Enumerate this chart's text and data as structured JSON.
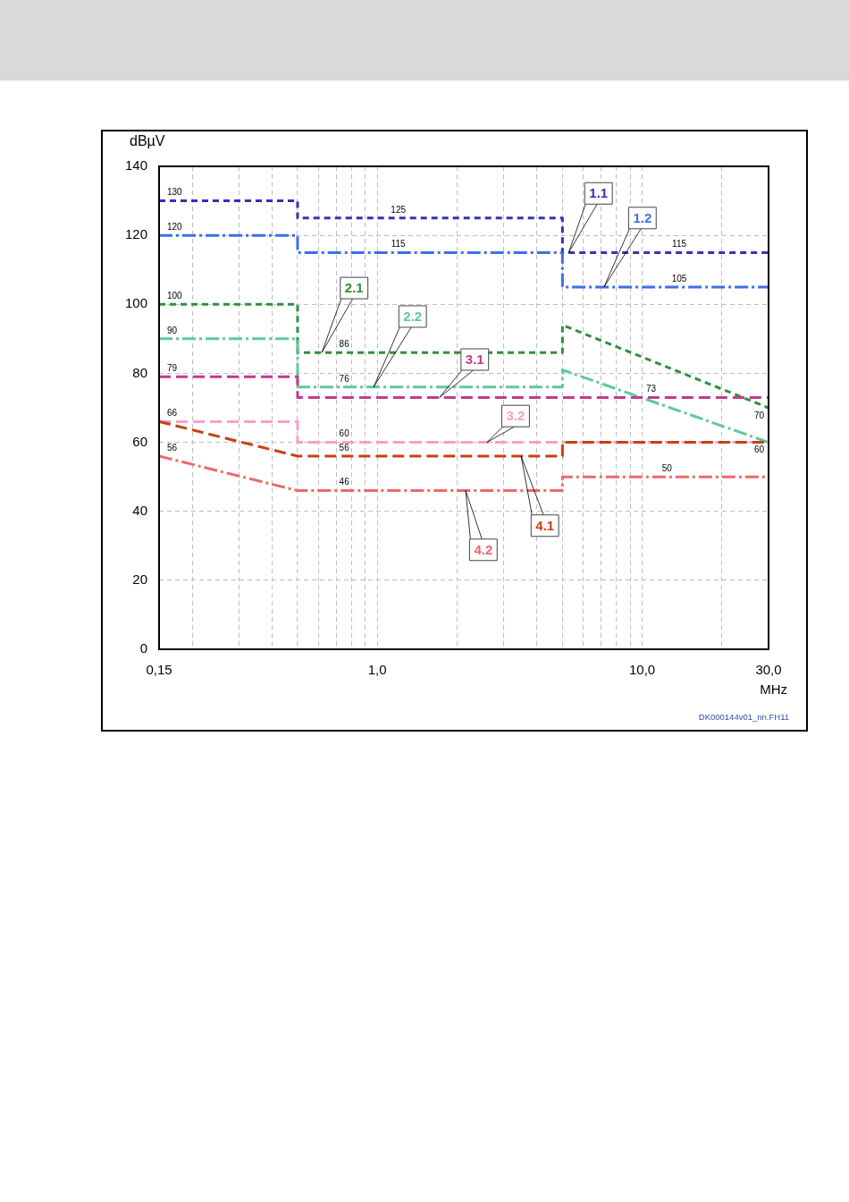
{
  "chart_data": {
    "type": "line",
    "xlabel": "MHz",
    "ylabel": "dBµV",
    "log": "x",
    "grid": true,
    "xlim": [
      0.15,
      30
    ],
    "xticks": [
      {
        "value": 0.15,
        "label": "0,15"
      },
      {
        "value": 0.2,
        "label": null
      },
      {
        "value": 0.3,
        "label": null
      },
      {
        "value": 0.4,
        "label": null
      },
      {
        "value": 0.5,
        "label": null
      },
      {
        "value": 0.6,
        "label": null
      },
      {
        "value": 0.7,
        "label": null
      },
      {
        "value": 0.8,
        "label": null
      },
      {
        "value": 0.9,
        "label": null
      },
      {
        "value": 1,
        "label": "1,0"
      },
      {
        "value": 2,
        "label": null
      },
      {
        "value": 3,
        "label": null
      },
      {
        "value": 4,
        "label": null
      },
      {
        "value": 5,
        "label": null
      },
      {
        "value": 6,
        "label": null
      },
      {
        "value": 7,
        "label": null
      },
      {
        "value": 8,
        "label": null
      },
      {
        "value": 9,
        "label": null
      },
      {
        "value": 10,
        "label": "10,0"
      },
      {
        "value": 20,
        "label": null
      },
      {
        "value": 30,
        "label": "30,0"
      }
    ],
    "ylim": [
      0,
      140
    ],
    "yticks": [
      0,
      20,
      40,
      60,
      80,
      100,
      120,
      140
    ],
    "series": [
      {
        "name": "1.1",
        "color": "#3333b3",
        "line_style": "dotted",
        "x": [
          0.15,
          0.5,
          0.5,
          1.2,
          5,
          5,
          13.8,
          30
        ],
        "values": [
          130,
          130,
          125,
          125,
          125,
          115,
          115,
          115
        ],
        "value_labels": [
          "130",
          null,
          null,
          "125",
          null,
          null,
          "115",
          null
        ]
      },
      {
        "name": "1.2",
        "color": "#3d6fe6",
        "line_style": "dashdot",
        "x": [
          0.15,
          0.5,
          0.5,
          1.2,
          5,
          5,
          13.8,
          30
        ],
        "values": [
          120,
          120,
          115,
          115,
          115,
          105,
          105,
          105
        ],
        "value_labels": [
          "120",
          null,
          null,
          "115",
          null,
          null,
          "105",
          null
        ]
      },
      {
        "name": "2.1",
        "color": "#2f9040",
        "line_style": "dotted",
        "x": [
          0.15,
          0.5,
          0.5,
          0.75,
          5,
          5,
          30
        ],
        "values": [
          100,
          100,
          86,
          86,
          86,
          94,
          70
        ],
        "value_labels": [
          "100",
          null,
          null,
          "86",
          null,
          null,
          "70"
        ]
      },
      {
        "name": "2.2",
        "color": "#5fc99b",
        "line_style": "dashdot",
        "x": [
          0.15,
          0.5,
          0.5,
          0.75,
          5,
          5,
          30
        ],
        "values": [
          90,
          90,
          76,
          76,
          76,
          81,
          60
        ],
        "value_labels": [
          "90",
          null,
          null,
          "76",
          null,
          null,
          "60"
        ]
      },
      {
        "name": "3.1",
        "color": "#c23a8f",
        "line_style": "dashed",
        "x": [
          0.15,
          0.5,
          0.5,
          10.8,
          30
        ],
        "values": [
          79,
          79,
          73,
          73,
          73
        ],
        "value_labels": [
          "79",
          null,
          null,
          "73",
          null
        ]
      },
      {
        "name": "3.2",
        "color": "#f5a0cb",
        "line_style": "dashed",
        "x": [
          0.15,
          0.5,
          0.5,
          0.75,
          30
        ],
        "values": [
          66,
          66,
          60,
          60,
          60
        ],
        "value_labels": [
          "66",
          null,
          null,
          "60",
          null
        ]
      },
      {
        "name": "4.1",
        "color": "#c8400e",
        "line_style": "dashed",
        "x": [
          0.15,
          0.5,
          0.75,
          5,
          5,
          30
        ],
        "values": [
          66,
          56,
          56,
          56,
          60,
          60
        ],
        "value_labels": [
          null,
          null,
          "56",
          null,
          null,
          null
        ]
      },
      {
        "name": "4.2",
        "color": "#ee6868",
        "line_style": "dashdot",
        "x": [
          0.15,
          0.5,
          0.75,
          5,
          5,
          12.4,
          30
        ],
        "values": [
          56,
          46,
          46,
          46,
          50,
          50,
          50
        ],
        "value_labels": [
          "56",
          null,
          "46",
          null,
          null,
          "50",
          null
        ]
      }
    ],
    "annotations": [
      "DK000144v01_nn.FH11"
    ]
  }
}
